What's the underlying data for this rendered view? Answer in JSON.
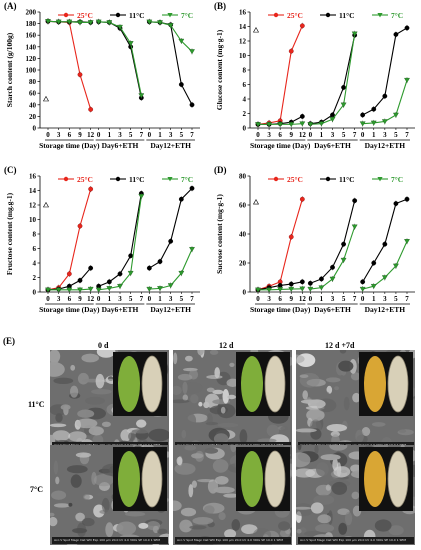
{
  "legend": {
    "labels": [
      "25°C",
      "11°C",
      "7°C"
    ],
    "colors": [
      "#e8261c",
      "#000000",
      "#2e9a2e"
    ]
  },
  "chart_data": [
    {
      "panel": "(A)",
      "type": "line",
      "ylabel": "Starch content (g/100g)",
      "ylim": [
        0,
        200
      ],
      "yticks": [
        0,
        20,
        40,
        60,
        80,
        100,
        120,
        140,
        160,
        180,
        200
      ],
      "ref_value": 50,
      "groups": [
        {
          "label": "Storage time (Day)",
          "x": [
            "0",
            "3",
            "6",
            "9",
            "12"
          ],
          "series": [
            {
              "name": "25°C",
              "values": [
                184,
                183,
                182,
                92,
                32
              ]
            },
            {
              "name": "11°C",
              "values": [
                184,
                183,
                183,
                183,
                182
              ]
            },
            {
              "name": "7°C",
              "values": [
                184,
                183,
                183,
                182,
                182
              ]
            }
          ]
        },
        {
          "label": "Day6+ETH",
          "x": [
            "0",
            "1",
            "3",
            "5",
            "7"
          ],
          "series": [
            {
              "name": "11°C",
              "values": [
                183,
                182,
                172,
                140,
                52
              ]
            },
            {
              "name": "7°C",
              "values": [
                183,
                182,
                174,
                146,
                56
              ]
            }
          ]
        },
        {
          "label": "Day12+ETH",
          "x": [
            "0",
            "1",
            "3",
            "5",
            "7"
          ],
          "series": [
            {
              "name": "11°C",
              "values": [
                183,
                182,
                178,
                75,
                40
              ]
            },
            {
              "name": "7°C",
              "values": [
                183,
                182,
                177,
                150,
                132
              ]
            }
          ]
        }
      ]
    },
    {
      "panel": "(B)",
      "type": "line",
      "ylabel": "Glucose content (mg·g-1)",
      "ylim": [
        0,
        16
      ],
      "yticks": [
        0,
        2,
        4,
        6,
        8,
        10,
        12,
        14,
        16
      ],
      "ref_value": 13.5,
      "groups": [
        {
          "label": "Storage time (Day)",
          "x": [
            "0",
            "3",
            "6",
            "9",
            "12"
          ],
          "series": [
            {
              "name": "25°C",
              "values": [
                0.5,
                0.7,
                1.0,
                10.6,
                14.1
              ]
            },
            {
              "name": "11°C",
              "values": [
                0.5,
                0.5,
                0.6,
                0.8,
                1.6
              ]
            },
            {
              "name": "7°C",
              "values": [
                0.5,
                0.5,
                0.5,
                0.5,
                0.6
              ]
            }
          ]
        },
        {
          "label": "Day6+ETH",
          "x": [
            "0",
            "1",
            "3",
            "5",
            "7"
          ],
          "series": [
            {
              "name": "11°C",
              "values": [
                0.6,
                0.8,
                1.8,
                5.6,
                12.8
              ]
            },
            {
              "name": "7°C",
              "values": [
                0.5,
                0.6,
                1.2,
                3.2,
                13.0
              ]
            }
          ]
        },
        {
          "label": "Day12+ETH",
          "x": [
            "0",
            "1",
            "3",
            "5",
            "7"
          ],
          "series": [
            {
              "name": "11°C",
              "values": [
                1.8,
                2.6,
                4.4,
                12.9,
                13.8
              ]
            },
            {
              "name": "7°C",
              "values": [
                0.6,
                0.7,
                0.9,
                1.8,
                6.6
              ]
            }
          ]
        }
      ]
    },
    {
      "panel": "(C)",
      "type": "line",
      "ylabel": "Fructose content (mg.g-1)",
      "ylim": [
        0,
        16
      ],
      "yticks": [
        0,
        2,
        4,
        6,
        8,
        10,
        12,
        14,
        16
      ],
      "ref_value": 12,
      "groups": [
        {
          "label": "Storage time (Day)",
          "x": [
            "0",
            "3",
            "6",
            "9",
            "12"
          ],
          "series": [
            {
              "name": "25°C",
              "values": [
                0.3,
                0.6,
                2.5,
                9.1,
                14.2
              ]
            },
            {
              "name": "11°C",
              "values": [
                0.3,
                0.4,
                0.8,
                1.6,
                3.3
              ]
            },
            {
              "name": "7°C",
              "values": [
                0.3,
                0.3,
                0.3,
                0.3,
                0.4
              ]
            }
          ]
        },
        {
          "label": "Day6+ETH",
          "x": [
            "0",
            "1",
            "3",
            "5",
            "7"
          ],
          "series": [
            {
              "name": "11°C",
              "values": [
                0.8,
                1.4,
                2.5,
                5.0,
                13.6
              ]
            },
            {
              "name": "7°C",
              "values": [
                0.3,
                0.5,
                0.8,
                2.6,
                13.2
              ]
            }
          ]
        },
        {
          "label": "Day12+ETH",
          "x": [
            "0",
            "1",
            "3",
            "5",
            "7"
          ],
          "series": [
            {
              "name": "11°C",
              "values": [
                3.3,
                4.2,
                7.0,
                12.8,
                14.3
              ]
            },
            {
              "name": "7°C",
              "values": [
                0.4,
                0.5,
                0.9,
                2.6,
                5.9
              ]
            }
          ]
        }
      ]
    },
    {
      "panel": "(D)",
      "type": "line",
      "ylabel": "Sucrose content (mg·g-1)",
      "ylim": [
        0,
        80
      ],
      "yticks": [
        0,
        20,
        40,
        60,
        80
      ],
      "ref_value": 62,
      "groups": [
        {
          "label": "Storage time (Day)",
          "x": [
            "0",
            "3",
            "6",
            "9",
            "12"
          ],
          "series": [
            {
              "name": "25°C",
              "values": [
                1.5,
                4,
                7,
                38,
                64
              ]
            },
            {
              "name": "11°C",
              "values": [
                1.5,
                3,
                4.5,
                5.5,
                7
              ]
            },
            {
              "name": "7°C",
              "values": [
                1.5,
                1.5,
                1.8,
                2,
                2.2
              ]
            }
          ]
        },
        {
          "label": "Day6+ETH",
          "x": [
            "0",
            "1",
            "3",
            "5",
            "7"
          ],
          "series": [
            {
              "name": "11°C",
              "values": [
                6,
                9,
                17,
                33,
                63
              ]
            },
            {
              "name": "7°C",
              "values": [
                2,
                3,
                9,
                22,
                45
              ]
            }
          ]
        },
        {
          "label": "Day12+ETH",
          "x": [
            "0",
            "1",
            "3",
            "5",
            "7"
          ],
          "series": [
            {
              "name": "11°C",
              "values": [
                7,
                20,
                33,
                61,
                64
              ]
            },
            {
              "name": "7°C",
              "values": [
                2,
                4,
                10,
                18,
                35
              ]
            }
          ]
        }
      ]
    }
  ],
  "sem": {
    "panel_label": "(E)",
    "columns": [
      "0 d",
      "12 d",
      "12 d +7d"
    ],
    "rows": [
      "11°C",
      "7°C"
    ],
    "tiles": [
      {
        "peel": "green",
        "scale_text": "Acc.V Spot Magn Det WD Exp 100 µm  20.0 kV 4.0 300x SE 10.0 1 SEM"
      },
      {
        "peel": "green",
        "scale_text": "Acc.V Spot Magn Det WD Exp 100 µm  20.0 kV 4.0 300x SE 10.0 1 SEM"
      },
      {
        "peel": "yellow",
        "scale_text": "Acc.V Spot Magn Det WD Exp 100 µm  20.0 kV 4.0 300x SE 10.0 1 SEM"
      },
      {
        "peel": "green",
        "scale_text": "Acc.V Spot Magn Det WD Exp 100 µm  20.0 kV 4.0 300x SE 10.0 1 SEM"
      },
      {
        "peel": "green",
        "scale_text": "Acc.V Spot Magn Det WD Exp 100 µm  20.0 kV 4.0 300x SE 10.0 1 SEM"
      },
      {
        "peel": "yellow",
        "scale_text": "Acc.V Spot Magn Det WD Exp 100 µm  20.0 kV 4.0 300x SE 10.0 1 SEM"
      }
    ]
  },
  "peel_colors": {
    "green": "#7fae3a",
    "yellow": "#d9a634"
  }
}
